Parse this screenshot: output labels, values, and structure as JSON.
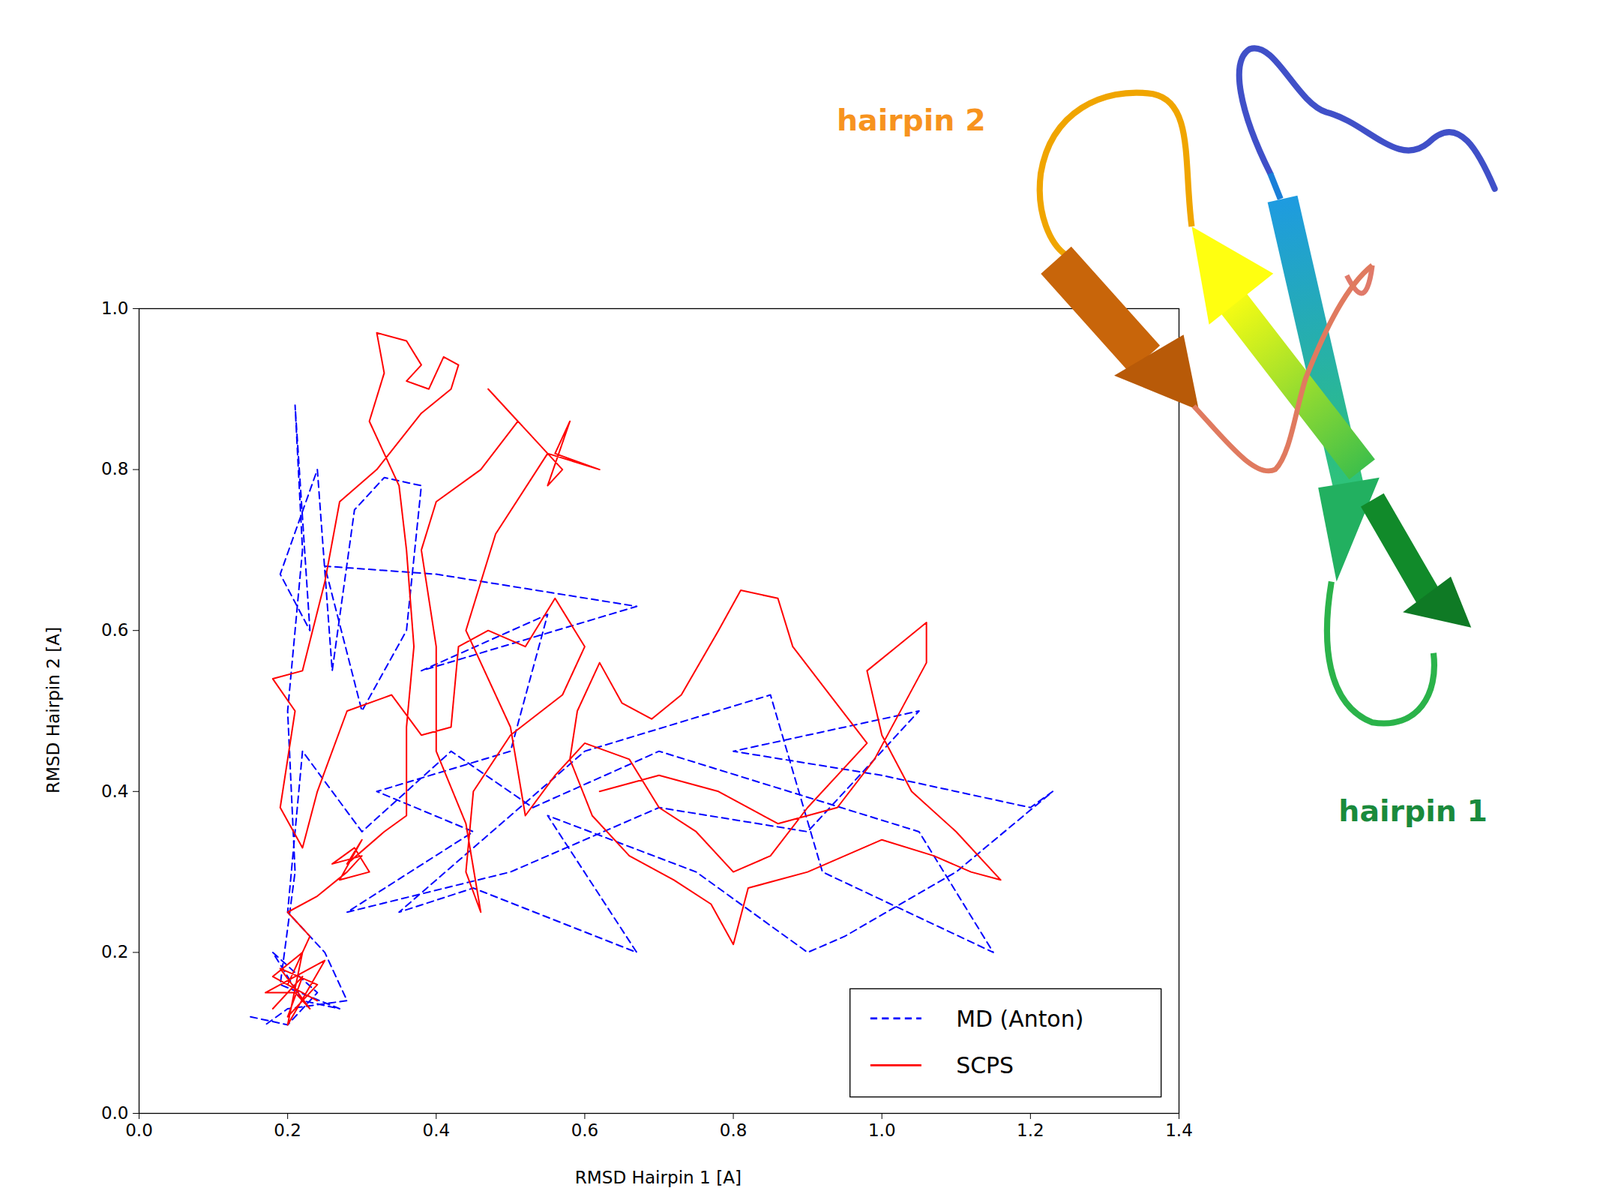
{
  "chart_data": {
    "type": "line",
    "x_label": "RMSD Hairpin 1 [A]",
    "y_label": "RMSD Hairpin 2 [A]",
    "xlim": [
      0,
      1.4
    ],
    "ylim": [
      0,
      1
    ],
    "xticks": [
      {
        "value": 0,
        "label": "0.0"
      },
      0.2,
      0.4,
      0.6,
      0.8,
      {
        "value": 1,
        "label": "1.0"
      },
      1.2,
      1.4
    ],
    "yticks": [
      {
        "value": 0,
        "label": "0.0"
      },
      0.2,
      0.4,
      0.6,
      0.8,
      {
        "value": 1,
        "label": "1.0"
      }
    ],
    "grid": false,
    "legend": "lower right",
    "annotations": [
      {
        "text": "hairpin 2",
        "color": "#f7931e"
      },
      {
        "text": "hairpin 1",
        "color": "#1a8a3c"
      }
    ],
    "series": [
      {
        "name": "MD (Anton)",
        "color": "#0000ff",
        "line_style": "dashed",
        "x": [
          0.15,
          0.2,
          0.24,
          0.18,
          0.22,
          0.27,
          0.19,
          0.21,
          0.2,
          0.22,
          0.21,
          0.23,
          0.19,
          0.24,
          0.26,
          0.29,
          0.33,
          0.38,
          0.36,
          0.3,
          0.25,
          0.4,
          0.67,
          0.38,
          0.55,
          0.5,
          0.32,
          0.45,
          0.28,
          0.5,
          0.7,
          0.9,
          1.05,
          0.8,
          1.0,
          1.2,
          1.23,
          1.1,
          0.95,
          0.9,
          0.75,
          0.55,
          0.67,
          0.45,
          0.35,
          0.6,
          0.85,
          0.92,
          1.15,
          1.05,
          0.7,
          0.53,
          0.42,
          0.3,
          0.22,
          0.2,
          0.25,
          0.28,
          0.2,
          0.17
        ],
        "values": [
          0.12,
          0.11,
          0.15,
          0.2,
          0.14,
          0.13,
          0.16,
          0.3,
          0.5,
          0.7,
          0.88,
          0.6,
          0.67,
          0.8,
          0.55,
          0.75,
          0.79,
          0.78,
          0.6,
          0.5,
          0.68,
          0.67,
          0.63,
          0.55,
          0.62,
          0.45,
          0.4,
          0.35,
          0.25,
          0.3,
          0.38,
          0.35,
          0.5,
          0.45,
          0.42,
          0.38,
          0.4,
          0.3,
          0.22,
          0.2,
          0.3,
          0.37,
          0.2,
          0.28,
          0.25,
          0.45,
          0.52,
          0.3,
          0.2,
          0.35,
          0.45,
          0.38,
          0.45,
          0.35,
          0.45,
          0.25,
          0.2,
          0.14,
          0.13,
          0.11
        ]
      },
      {
        "name": "SCPS",
        "color": "#ff0000",
        "line_style": "solid",
        "x": [
          0.18,
          0.22,
          0.2,
          0.24,
          0.19,
          0.23,
          0.21,
          0.17,
          0.25,
          0.2,
          0.22,
          0.18,
          0.24,
          0.2,
          0.23,
          0.2,
          0.24,
          0.28,
          0.3,
          0.26,
          0.29,
          0.31,
          0.27,
          0.3,
          0.28,
          0.33,
          0.36,
          0.36,
          0.37,
          0.36,
          0.35,
          0.31,
          0.33,
          0.32,
          0.36,
          0.38,
          0.36,
          0.39,
          0.41,
          0.43,
          0.42,
          0.38,
          0.32,
          0.27,
          0.25,
          0.22,
          0.18,
          0.21,
          0.2,
          0.19,
          0.22,
          0.24,
          0.28,
          0.34,
          0.38,
          0.42,
          0.43,
          0.47,
          0.52,
          0.56,
          0.6,
          0.57,
          0.5,
          0.45,
          0.44,
          0.46,
          0.44,
          0.4,
          0.4,
          0.38,
          0.4,
          0.46,
          0.51,
          0.47,
          0.53,
          0.57,
          0.55,
          0.58,
          0.56,
          0.62,
          0.55,
          0.48,
          0.44,
          0.5,
          0.52,
          0.56,
          0.6,
          0.66,
          0.7,
          0.75,
          0.8,
          0.85,
          0.9,
          0.95,
          0.98,
          0.93,
          0.88,
          0.86,
          0.81,
          0.78,
          0.73,
          0.69,
          0.65,
          0.62,
          0.59,
          0.58,
          0.61,
          0.66,
          0.72,
          0.77,
          0.8,
          0.82,
          0.9,
          1.0,
          1.07,
          1.12,
          1.16,
          1.1,
          1.04,
          1.0,
          0.98,
          1.02,
          1.06,
          1.06,
          0.99,
          0.94,
          0.86,
          0.78,
          0.7,
          0.62
        ],
        "values": [
          0.13,
          0.17,
          0.12,
          0.16,
          0.18,
          0.13,
          0.15,
          0.15,
          0.19,
          0.11,
          0.2,
          0.17,
          0.14,
          0.16,
          0.22,
          0.25,
          0.27,
          0.3,
          0.32,
          0.31,
          0.33,
          0.3,
          0.29,
          0.34,
          0.31,
          0.35,
          0.37,
          0.48,
          0.58,
          0.7,
          0.78,
          0.86,
          0.92,
          0.97,
          0.96,
          0.93,
          0.91,
          0.9,
          0.94,
          0.93,
          0.9,
          0.87,
          0.8,
          0.76,
          0.66,
          0.55,
          0.54,
          0.5,
          0.44,
          0.38,
          0.33,
          0.4,
          0.5,
          0.52,
          0.47,
          0.48,
          0.58,
          0.6,
          0.58,
          0.64,
          0.58,
          0.52,
          0.47,
          0.4,
          0.3,
          0.25,
          0.36,
          0.45,
          0.58,
          0.7,
          0.76,
          0.8,
          0.86,
          0.9,
          0.84,
          0.8,
          0.78,
          0.86,
          0.82,
          0.8,
          0.82,
          0.72,
          0.6,
          0.48,
          0.37,
          0.42,
          0.46,
          0.44,
          0.38,
          0.35,
          0.3,
          0.32,
          0.38,
          0.43,
          0.46,
          0.52,
          0.58,
          0.64,
          0.65,
          0.6,
          0.52,
          0.49,
          0.51,
          0.56,
          0.5,
          0.44,
          0.37,
          0.32,
          0.29,
          0.26,
          0.21,
          0.28,
          0.3,
          0.34,
          0.32,
          0.3,
          0.29,
          0.35,
          0.4,
          0.47,
          0.55,
          0.58,
          0.61,
          0.56,
          0.44,
          0.38,
          0.36,
          0.4,
          0.42,
          0.4
        ]
      }
    ]
  }
}
